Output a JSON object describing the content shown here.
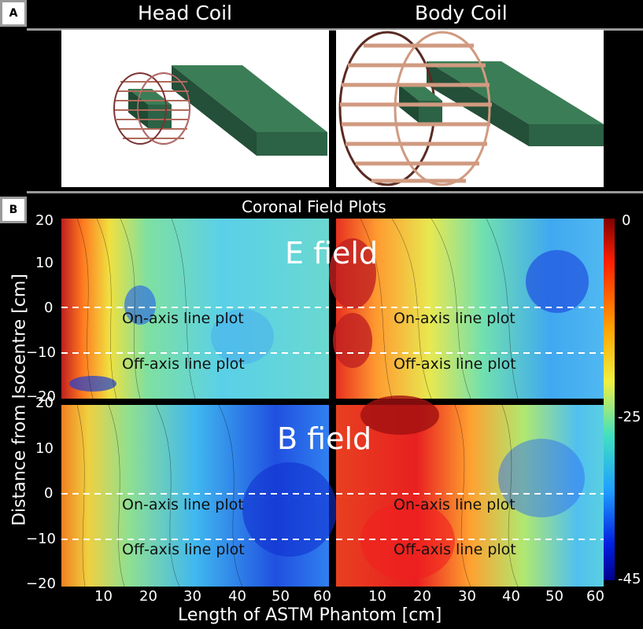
{
  "panel_a": {
    "label": "A",
    "head_title": "Head Coil",
    "body_title": "Body Coil"
  },
  "panel_b": {
    "label": "B",
    "title": "Coronal Field Plots",
    "e_field": "E field",
    "b_field": "B field",
    "on_axis": "On-axis line plot",
    "off_axis": "Off-axis line plot",
    "ylabel": "Distance from Isocentre [cm]",
    "xlabel": "Length of ASTM Phantom [cm]",
    "y_ticks_top": [
      "20",
      "10",
      "0",
      "−10",
      "−20"
    ],
    "y_ticks_bottom": [
      "20",
      "10",
      "0",
      "−10",
      "−20"
    ],
    "x_ticks_left": [
      "10",
      "20",
      "30",
      "40",
      "50",
      "60"
    ],
    "x_ticks_right": [
      "10",
      "20",
      "30",
      "40",
      "50",
      "60"
    ],
    "colorbar_ticks": [
      "0",
      "-25",
      "-45"
    ],
    "colorbar_range": [
      -45,
      0
    ]
  },
  "colors": {
    "green_face": "#2f6f4a",
    "copper": "#c98a70",
    "dark_copper": "#5a2a22"
  }
}
